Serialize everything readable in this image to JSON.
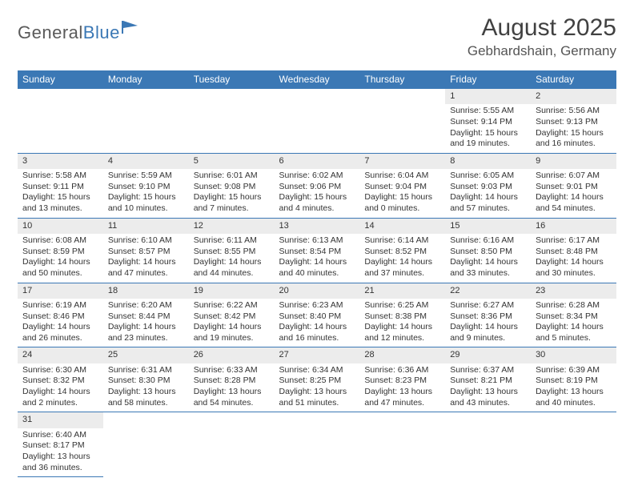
{
  "logo": {
    "part1": "General",
    "part2": "Blue"
  },
  "title": {
    "month": "August 2025",
    "location": "Gebhardshain, Germany"
  },
  "colors": {
    "header_bg": "#3b78b5",
    "header_text": "#ffffff",
    "daynum_bg": "#ececec",
    "row_underline": "#3b78b5",
    "logo_gray": "#5a5a5a",
    "logo_blue": "#3b78b5",
    "body_text": "#333333"
  },
  "day_headers": [
    "Sunday",
    "Monday",
    "Tuesday",
    "Wednesday",
    "Thursday",
    "Friday",
    "Saturday"
  ],
  "weeks": [
    [
      {
        "n": "",
        "sr": "",
        "ss": "",
        "d1": "",
        "d2": ""
      },
      {
        "n": "",
        "sr": "",
        "ss": "",
        "d1": "",
        "d2": ""
      },
      {
        "n": "",
        "sr": "",
        "ss": "",
        "d1": "",
        "d2": ""
      },
      {
        "n": "",
        "sr": "",
        "ss": "",
        "d1": "",
        "d2": ""
      },
      {
        "n": "",
        "sr": "",
        "ss": "",
        "d1": "",
        "d2": ""
      },
      {
        "n": "1",
        "sr": "Sunrise: 5:55 AM",
        "ss": "Sunset: 9:14 PM",
        "d1": "Daylight: 15 hours",
        "d2": "and 19 minutes."
      },
      {
        "n": "2",
        "sr": "Sunrise: 5:56 AM",
        "ss": "Sunset: 9:13 PM",
        "d1": "Daylight: 15 hours",
        "d2": "and 16 minutes."
      }
    ],
    [
      {
        "n": "3",
        "sr": "Sunrise: 5:58 AM",
        "ss": "Sunset: 9:11 PM",
        "d1": "Daylight: 15 hours",
        "d2": "and 13 minutes."
      },
      {
        "n": "4",
        "sr": "Sunrise: 5:59 AM",
        "ss": "Sunset: 9:10 PM",
        "d1": "Daylight: 15 hours",
        "d2": "and 10 minutes."
      },
      {
        "n": "5",
        "sr": "Sunrise: 6:01 AM",
        "ss": "Sunset: 9:08 PM",
        "d1": "Daylight: 15 hours",
        "d2": "and 7 minutes."
      },
      {
        "n": "6",
        "sr": "Sunrise: 6:02 AM",
        "ss": "Sunset: 9:06 PM",
        "d1": "Daylight: 15 hours",
        "d2": "and 4 minutes."
      },
      {
        "n": "7",
        "sr": "Sunrise: 6:04 AM",
        "ss": "Sunset: 9:04 PM",
        "d1": "Daylight: 15 hours",
        "d2": "and 0 minutes."
      },
      {
        "n": "8",
        "sr": "Sunrise: 6:05 AM",
        "ss": "Sunset: 9:03 PM",
        "d1": "Daylight: 14 hours",
        "d2": "and 57 minutes."
      },
      {
        "n": "9",
        "sr": "Sunrise: 6:07 AM",
        "ss": "Sunset: 9:01 PM",
        "d1": "Daylight: 14 hours",
        "d2": "and 54 minutes."
      }
    ],
    [
      {
        "n": "10",
        "sr": "Sunrise: 6:08 AM",
        "ss": "Sunset: 8:59 PM",
        "d1": "Daylight: 14 hours",
        "d2": "and 50 minutes."
      },
      {
        "n": "11",
        "sr": "Sunrise: 6:10 AM",
        "ss": "Sunset: 8:57 PM",
        "d1": "Daylight: 14 hours",
        "d2": "and 47 minutes."
      },
      {
        "n": "12",
        "sr": "Sunrise: 6:11 AM",
        "ss": "Sunset: 8:55 PM",
        "d1": "Daylight: 14 hours",
        "d2": "and 44 minutes."
      },
      {
        "n": "13",
        "sr": "Sunrise: 6:13 AM",
        "ss": "Sunset: 8:54 PM",
        "d1": "Daylight: 14 hours",
        "d2": "and 40 minutes."
      },
      {
        "n": "14",
        "sr": "Sunrise: 6:14 AM",
        "ss": "Sunset: 8:52 PM",
        "d1": "Daylight: 14 hours",
        "d2": "and 37 minutes."
      },
      {
        "n": "15",
        "sr": "Sunrise: 6:16 AM",
        "ss": "Sunset: 8:50 PM",
        "d1": "Daylight: 14 hours",
        "d2": "and 33 minutes."
      },
      {
        "n": "16",
        "sr": "Sunrise: 6:17 AM",
        "ss": "Sunset: 8:48 PM",
        "d1": "Daylight: 14 hours",
        "d2": "and 30 minutes."
      }
    ],
    [
      {
        "n": "17",
        "sr": "Sunrise: 6:19 AM",
        "ss": "Sunset: 8:46 PM",
        "d1": "Daylight: 14 hours",
        "d2": "and 26 minutes."
      },
      {
        "n": "18",
        "sr": "Sunrise: 6:20 AM",
        "ss": "Sunset: 8:44 PM",
        "d1": "Daylight: 14 hours",
        "d2": "and 23 minutes."
      },
      {
        "n": "19",
        "sr": "Sunrise: 6:22 AM",
        "ss": "Sunset: 8:42 PM",
        "d1": "Daylight: 14 hours",
        "d2": "and 19 minutes."
      },
      {
        "n": "20",
        "sr": "Sunrise: 6:23 AM",
        "ss": "Sunset: 8:40 PM",
        "d1": "Daylight: 14 hours",
        "d2": "and 16 minutes."
      },
      {
        "n": "21",
        "sr": "Sunrise: 6:25 AM",
        "ss": "Sunset: 8:38 PM",
        "d1": "Daylight: 14 hours",
        "d2": "and 12 minutes."
      },
      {
        "n": "22",
        "sr": "Sunrise: 6:27 AM",
        "ss": "Sunset: 8:36 PM",
        "d1": "Daylight: 14 hours",
        "d2": "and 9 minutes."
      },
      {
        "n": "23",
        "sr": "Sunrise: 6:28 AM",
        "ss": "Sunset: 8:34 PM",
        "d1": "Daylight: 14 hours",
        "d2": "and 5 minutes."
      }
    ],
    [
      {
        "n": "24",
        "sr": "Sunrise: 6:30 AM",
        "ss": "Sunset: 8:32 PM",
        "d1": "Daylight: 14 hours",
        "d2": "and 2 minutes."
      },
      {
        "n": "25",
        "sr": "Sunrise: 6:31 AM",
        "ss": "Sunset: 8:30 PM",
        "d1": "Daylight: 13 hours",
        "d2": "and 58 minutes."
      },
      {
        "n": "26",
        "sr": "Sunrise: 6:33 AM",
        "ss": "Sunset: 8:28 PM",
        "d1": "Daylight: 13 hours",
        "d2": "and 54 minutes."
      },
      {
        "n": "27",
        "sr": "Sunrise: 6:34 AM",
        "ss": "Sunset: 8:25 PM",
        "d1": "Daylight: 13 hours",
        "d2": "and 51 minutes."
      },
      {
        "n": "28",
        "sr": "Sunrise: 6:36 AM",
        "ss": "Sunset: 8:23 PM",
        "d1": "Daylight: 13 hours",
        "d2": "and 47 minutes."
      },
      {
        "n": "29",
        "sr": "Sunrise: 6:37 AM",
        "ss": "Sunset: 8:21 PM",
        "d1": "Daylight: 13 hours",
        "d2": "and 43 minutes."
      },
      {
        "n": "30",
        "sr": "Sunrise: 6:39 AM",
        "ss": "Sunset: 8:19 PM",
        "d1": "Daylight: 13 hours",
        "d2": "and 40 minutes."
      }
    ],
    [
      {
        "n": "31",
        "sr": "Sunrise: 6:40 AM",
        "ss": "Sunset: 8:17 PM",
        "d1": "Daylight: 13 hours",
        "d2": "and 36 minutes."
      },
      {
        "n": "",
        "sr": "",
        "ss": "",
        "d1": "",
        "d2": ""
      },
      {
        "n": "",
        "sr": "",
        "ss": "",
        "d1": "",
        "d2": ""
      },
      {
        "n": "",
        "sr": "",
        "ss": "",
        "d1": "",
        "d2": ""
      },
      {
        "n": "",
        "sr": "",
        "ss": "",
        "d1": "",
        "d2": ""
      },
      {
        "n": "",
        "sr": "",
        "ss": "",
        "d1": "",
        "d2": ""
      },
      {
        "n": "",
        "sr": "",
        "ss": "",
        "d1": "",
        "d2": ""
      }
    ]
  ]
}
